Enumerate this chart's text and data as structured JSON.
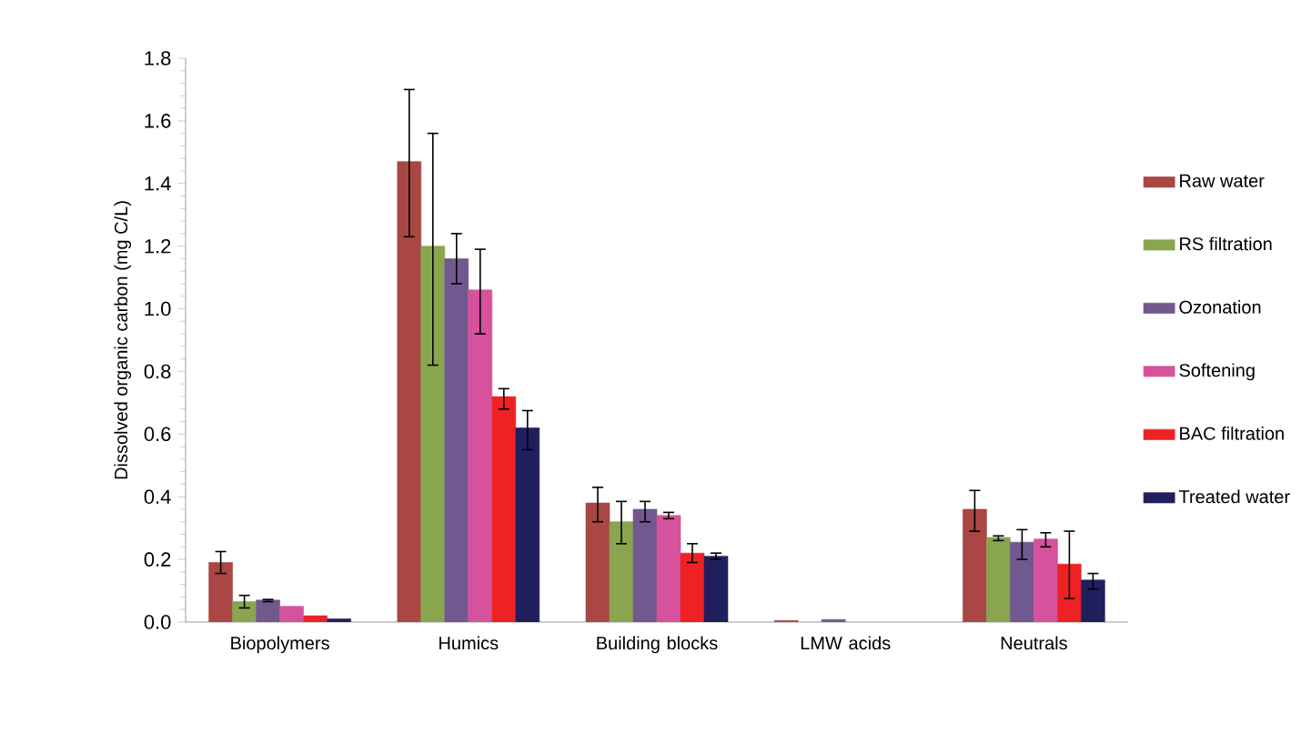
{
  "chart_data": {
    "type": "bar",
    "ylabel": "Dissolved organic carbon (mg C/L)",
    "categories": [
      "Biopolymers",
      "Humics",
      "Building blocks",
      "LMW acids",
      "Neutrals"
    ],
    "series": [
      {
        "name": "Raw water",
        "color": "#aa4644",
        "values": [
          0.19,
          1.47,
          0.38,
          0.005,
          0.36
        ],
        "errors": [
          [
            0.155,
            0.225
          ],
          [
            1.23,
            1.7
          ],
          [
            0.32,
            0.43
          ],
          null,
          [
            0.29,
            0.42
          ]
        ]
      },
      {
        "name": "RS filtration",
        "color": "#89a54e",
        "values": [
          0.065,
          1.2,
          0.32,
          null,
          0.27
        ],
        "errors": [
          [
            0.045,
            0.085
          ],
          [
            0.82,
            1.56
          ],
          [
            0.25,
            0.385
          ],
          null,
          [
            0.26,
            0.275
          ]
        ]
      },
      {
        "name": "Ozonation",
        "color": "#71588f",
        "values": [
          0.07,
          1.16,
          0.36,
          0.008,
          0.255
        ],
        "errors": [
          [
            0.065,
            0.072
          ],
          [
            1.08,
            1.24
          ],
          [
            0.32,
            0.385
          ],
          null,
          [
            0.2,
            0.295
          ]
        ]
      },
      {
        "name": "Softening",
        "color": "#d7529c",
        "values": [
          0.05,
          1.06,
          0.34,
          null,
          0.265
        ],
        "errors": [
          null,
          [
            0.92,
            1.19
          ],
          [
            0.33,
            0.35
          ],
          null,
          [
            0.24,
            0.285
          ]
        ]
      },
      {
        "name": "BAC filtration",
        "color": "#ee2224",
        "values": [
          0.02,
          0.72,
          0.22,
          null,
          0.185
        ],
        "errors": [
          null,
          [
            0.68,
            0.745
          ],
          [
            0.19,
            0.25
          ],
          null,
          [
            0.075,
            0.29
          ]
        ]
      },
      {
        "name": "Treated water",
        "color": "#201f5e",
        "values": [
          0.01,
          0.62,
          0.21,
          null,
          0.134
        ],
        "errors": [
          null,
          [
            0.55,
            0.675
          ],
          [
            0.2,
            0.22
          ],
          null,
          [
            0.105,
            0.155
          ]
        ]
      }
    ],
    "ylim": [
      0,
      1.8
    ],
    "yticks": [
      {
        "value": 0,
        "label": "0.0"
      },
      {
        "value": 0.2,
        "label": "0.2"
      },
      {
        "value": 0.4,
        "label": "0.4"
      },
      {
        "value": 0.6,
        "label": "0.6"
      },
      {
        "value": 0.8,
        "label": "0.8"
      },
      {
        "value": 1,
        "label": "1.0"
      },
      {
        "value": 1.2,
        "label": "1.2"
      },
      {
        "value": 1.4,
        "label": "1.4"
      },
      {
        "value": 1.6,
        "label": "1.6"
      },
      {
        "value": 1.8,
        "label": "1.8"
      }
    ],
    "legend": "right",
    "grid": false
  }
}
